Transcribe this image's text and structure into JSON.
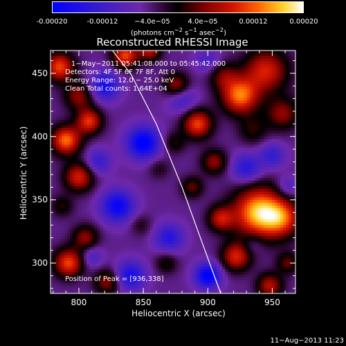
{
  "colorbar": {
    "ticks": [
      "-0.00020",
      "-0.00012",
      "−4.0e−05",
      "4.0e−05",
      "0.00012",
      "0.00020"
    ],
    "tick_values": [
      -0.0002,
      -0.00012,
      -4e-05,
      4e-05,
      0.00012,
      0.0002
    ],
    "range": [
      -0.0002,
      0.0002
    ],
    "unit_prefix": "(photons cm",
    "unit_exp1": "−2",
    "unit_mid": " s",
    "unit_exp2": "−1",
    "unit_mid2": " asec",
    "unit_exp3": "−2",
    "unit_suffix": ")"
  },
  "header": {
    "title": "Reconstructed RHESSI Image"
  },
  "annotations": {
    "time_range": "1−May−2011 05:41:08.000 to 05:45:42.000",
    "detectors": "Detectors: 4F 5F 6F 7F 8F, Att 0",
    "energy": "Energy Range: 12.0 − 25.0 keV",
    "clean": "Clean      Total counts: 1.64E+04",
    "peak": "Position of Peak = [936,338]"
  },
  "footer": {
    "timestamp": "11−Aug−2013 11:23"
  },
  "chart_data": {
    "type": "heatmap",
    "title": "Reconstructed RHESSI Image",
    "xlabel": "Heliocentric X (arcsec)",
    "ylabel": "Heliocentric Y (arcsec)",
    "xlim": [
      778,
      968
    ],
    "ylim": [
      276,
      468
    ],
    "xticks": [
      800,
      850,
      900,
      950
    ],
    "yticks": [
      300,
      350,
      400,
      450
    ],
    "xtick_labels": [
      "800",
      "850",
      "900",
      "950"
    ],
    "ytick_labels": [
      "300",
      "350",
      "400",
      "450"
    ],
    "peak": [
      936,
      338
    ],
    "limb_curve": [
      [
        826,
        468
      ],
      [
        840,
        450
      ],
      [
        860,
        410
      ],
      [
        880,
        360
      ],
      [
        896,
        315
      ],
      [
        910,
        276
      ]
    ],
    "blobs": [
      {
        "x": 940,
        "y": 340,
        "v": 0.00022,
        "s": 14
      },
      {
        "x": 958,
        "y": 335,
        "v": 0.00012,
        "s": 10
      },
      {
        "x": 925,
        "y": 432,
        "v": 0.00018,
        "s": 10
      },
      {
        "x": 945,
        "y": 452,
        "v": 0.00014,
        "s": 12
      },
      {
        "x": 958,
        "y": 418,
        "v": 0.0001,
        "s": 9
      },
      {
        "x": 935,
        "y": 405,
        "v": 6e-05,
        "s": 8
      },
      {
        "x": 912,
        "y": 448,
        "v": 8e-05,
        "s": 8
      },
      {
        "x": 785,
        "y": 455,
        "v": 0.00016,
        "s": 8
      },
      {
        "x": 800,
        "y": 432,
        "v": 0.0001,
        "s": 8
      },
      {
        "x": 808,
        "y": 412,
        "v": 0.00015,
        "s": 7
      },
      {
        "x": 790,
        "y": 397,
        "v": 0.00018,
        "s": 8
      },
      {
        "x": 800,
        "y": 368,
        "v": 0.00014,
        "s": 8
      },
      {
        "x": 787,
        "y": 345,
        "v": 6e-05,
        "s": 6
      },
      {
        "x": 805,
        "y": 320,
        "v": 0.0001,
        "s": 7
      },
      {
        "x": 792,
        "y": 300,
        "v": 0.00016,
        "s": 8
      },
      {
        "x": 822,
        "y": 285,
        "v": 0.0001,
        "s": 7
      },
      {
        "x": 836,
        "y": 464,
        "v": 0.00016,
        "s": 7
      },
      {
        "x": 855,
        "y": 468,
        "v": 0.00012,
        "s": 6
      },
      {
        "x": 876,
        "y": 440,
        "v": 0.00012,
        "s": 7
      },
      {
        "x": 892,
        "y": 410,
        "v": 0.00016,
        "s": 8
      },
      {
        "x": 874,
        "y": 395,
        "v": 6e-05,
        "s": 6
      },
      {
        "x": 905,
        "y": 380,
        "v": 0.0001,
        "s": 7
      },
      {
        "x": 888,
        "y": 360,
        "v": 8e-05,
        "s": 6
      },
      {
        "x": 910,
        "y": 335,
        "v": 0.00012,
        "s": 7
      },
      {
        "x": 922,
        "y": 305,
        "v": 0.00014,
        "s": 8
      },
      {
        "x": 948,
        "y": 282,
        "v": 0.00012,
        "s": 7
      },
      {
        "x": 962,
        "y": 300,
        "v": 8e-05,
        "s": 6
      },
      {
        "x": 868,
        "y": 300,
        "v": 6e-05,
        "s": 6
      },
      {
        "x": 848,
        "y": 330,
        "v": 4e-05,
        "s": 6
      },
      {
        "x": 862,
        "y": 375,
        "v": 4e-05,
        "s": 6
      },
      {
        "x": 830,
        "y": 345,
        "v": -0.00014,
        "s": 9
      },
      {
        "x": 850,
        "y": 395,
        "v": -0.00016,
        "s": 9
      },
      {
        "x": 820,
        "y": 440,
        "v": -0.00012,
        "s": 8
      },
      {
        "x": 880,
        "y": 430,
        "v": -8e-05,
        "s": 8
      },
      {
        "x": 840,
        "y": 290,
        "v": -0.00012,
        "s": 8
      },
      {
        "x": 870,
        "y": 320,
        "v": -0.0001,
        "s": 8
      },
      {
        "x": 900,
        "y": 290,
        "v": -0.00016,
        "s": 7
      },
      {
        "x": 930,
        "y": 375,
        "v": -0.0001,
        "s": 8
      },
      {
        "x": 950,
        "y": 385,
        "v": -8e-05,
        "s": 7
      },
      {
        "x": 815,
        "y": 380,
        "v": -8e-05,
        "s": 7
      },
      {
        "x": 810,
        "y": 305,
        "v": -6e-05,
        "s": 6
      },
      {
        "x": 900,
        "y": 460,
        "v": -6e-05,
        "s": 7
      },
      {
        "x": 935,
        "y": 315,
        "v": -4e-05,
        "s": 6
      },
      {
        "x": 962,
        "y": 360,
        "v": -6e-05,
        "s": 6
      }
    ]
  }
}
